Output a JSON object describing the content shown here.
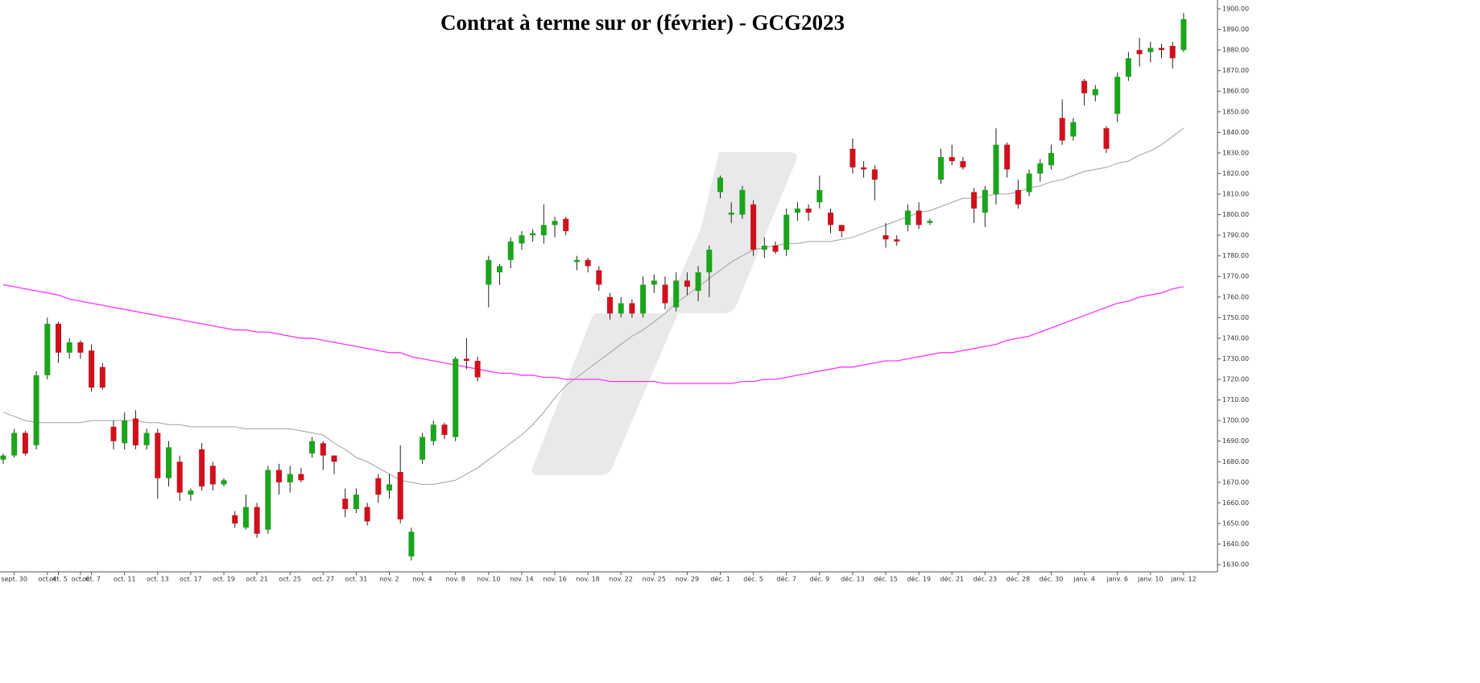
{
  "chart_data": {
    "type": "candlestick",
    "title": "Contrat à terme sur or (février) - GCG2023",
    "up_color": "#1aa51a",
    "down_color": "#d0101b",
    "categories": [
      null,
      "sept. 30",
      null,
      null,
      "oct. 4",
      "oct. 5",
      null,
      "oct. 6",
      "oct. 7",
      null,
      null,
      "oct. 11",
      null,
      null,
      "oct. 13",
      null,
      null,
      "oct. 17",
      null,
      null,
      "oct. 19",
      null,
      null,
      "oct. 21",
      null,
      null,
      "oct. 25",
      null,
      null,
      "oct. 27",
      null,
      null,
      "oct. 31",
      null,
      null,
      "nov. 2",
      null,
      null,
      "nov. 4",
      null,
      null,
      "nov. 8",
      null,
      null,
      "nov. 10",
      null,
      null,
      "nov. 14",
      null,
      null,
      "nov. 16",
      null,
      null,
      "nov. 18",
      null,
      null,
      "nov. 22",
      null,
      null,
      "nov. 25",
      null,
      null,
      "nov. 29",
      null,
      null,
      "déc. 1",
      null,
      null,
      "déc. 5",
      null,
      null,
      "déc. 7",
      null,
      null,
      "déc. 9",
      null,
      null,
      "déc. 13",
      null,
      null,
      "déc. 15",
      null,
      null,
      "déc. 19",
      null,
      null,
      "déc. 21",
      null,
      null,
      "déc. 23",
      null,
      null,
      "déc. 28",
      null,
      null,
      "déc. 30",
      null,
      null,
      "janv. 4",
      null,
      null,
      "janv. 6",
      null,
      null,
      "janv. 10",
      null,
      null,
      "janv. 12"
    ],
    "open": [
      1681,
      1683,
      1694,
      1688,
      1722,
      1747,
      1733,
      1738,
      1734,
      1726,
      1697,
      1689,
      1701,
      1688,
      1694,
      1672,
      1680,
      1664,
      1686,
      1678,
      1669,
      1654,
      1648,
      1658,
      1647,
      1676,
      1670,
      1674,
      1684,
      1689,
      1683,
      1662,
      1657,
      1658,
      1672,
      1666,
      1675,
      1634,
      1681,
      1690,
      1698,
      1692,
      1730,
      1729,
      1766,
      1772,
      1778,
      1786,
      1790,
      1790,
      1795,
      1798,
      1777,
      1778,
      1773,
      1760,
      1752,
      1757,
      1752,
      1766,
      1766,
      1755,
      1768,
      1763,
      1772,
      1811,
      1800,
      1800,
      1805,
      1783,
      1785,
      1783,
      1801,
      1803,
      1806,
      1801,
      1795,
      1832,
      1823,
      1822,
      1790,
      1788,
      1795,
      1802,
      1796,
      1817,
      1828,
      1826,
      1811,
      1801,
      1810,
      1834,
      1812,
      1811,
      1820,
      1824,
      1847,
      1838,
      1865,
      1858,
      1842,
      1849,
      1867,
      1880,
      1879,
      1881,
      1882,
      1880
    ],
    "high": [
      1684,
      1696,
      1695,
      1724,
      1750,
      1748,
      1740,
      1739,
      1737,
      1728,
      1700,
      1704,
      1705,
      1696,
      1696,
      1690,
      1683,
      1667,
      1689,
      1680,
      1672,
      1656,
      1664,
      1660,
      1678,
      1679,
      1678,
      1677,
      1692,
      1690,
      1683,
      1667,
      1667,
      1660,
      1674,
      1674,
      1688,
      1648,
      1694,
      1700,
      1699,
      1731,
      1740,
      1731,
      1780,
      1776,
      1789,
      1792,
      1793,
      1805,
      1799,
      1799,
      1780,
      1779,
      1775,
      1762,
      1760,
      1759,
      1770,
      1771,
      1770,
      1772,
      1772,
      1775,
      1785,
      1819,
      1806,
      1814,
      1807,
      1789,
      1787,
      1803,
      1806,
      1805,
      1819,
      1803,
      1795,
      1837,
      1826,
      1824,
      1796,
      1790,
      1805,
      1806,
      1798,
      1832,
      1834,
      1828,
      1813,
      1814,
      1842,
      1835,
      1817,
      1822,
      1827,
      1834,
      1856,
      1847,
      1866,
      1863,
      1843,
      1869,
      1879,
      1886,
      1884,
      1883,
      1884,
      1898
    ],
    "low": [
      1679,
      1682,
      1683,
      1686,
      1720,
      1728,
      1730,
      1730,
      1714,
      1715,
      1686,
      1686,
      1686,
      1686,
      1662,
      1668,
      1661,
      1661,
      1666,
      1666,
      1668,
      1648,
      1647,
      1643,
      1645,
      1664,
      1665,
      1670,
      1682,
      1676,
      1674,
      1653,
      1655,
      1649,
      1660,
      1662,
      1650,
      1632,
      1679,
      1688,
      1691,
      1690,
      1725,
      1719,
      1755,
      1766,
      1774,
      1783,
      1787,
      1786,
      1789,
      1790,
      1773,
      1772,
      1763,
      1749,
      1750,
      1750,
      1750,
      1762,
      1754,
      1753,
      1761,
      1758,
      1760,
      1808,
      1796,
      1798,
      1780,
      1779,
      1781,
      1780,
      1797,
      1797,
      1803,
      1791,
      1789,
      1820,
      1818,
      1807,
      1784,
      1785,
      1792,
      1793,
      1795,
      1815,
      1824,
      1822,
      1796,
      1794,
      1805,
      1818,
      1803,
      1809,
      1816,
      1822,
      1834,
      1836,
      1853,
      1855,
      1830,
      1845,
      1865,
      1872,
      1874,
      1876,
      1871,
      1879
    ],
    "close": [
      1683,
      1694,
      1684,
      1722,
      1747,
      1733,
      1738,
      1733,
      1716,
      1716,
      1690,
      1700,
      1688,
      1694,
      1672,
      1687,
      1665,
      1666,
      1668,
      1669,
      1671,
      1650,
      1658,
      1645,
      1676,
      1670,
      1674,
      1671,
      1690,
      1683,
      1680,
      1657,
      1664,
      1651,
      1664,
      1669,
      1652,
      1646,
      1692,
      1698,
      1693,
      1730,
      1729,
      1721,
      1778,
      1775,
      1787,
      1790,
      1791,
      1795,
      1797,
      1792,
      1778,
      1775,
      1766,
      1752,
      1757,
      1752,
      1766,
      1768,
      1757,
      1768,
      1765,
      1772,
      1783,
      1818,
      1801,
      1812,
      1783,
      1785,
      1782,
      1800,
      1803,
      1801,
      1812,
      1795,
      1792,
      1823,
      1822,
      1817,
      1788,
      1787,
      1802,
      1795,
      1797,
      1828,
      1826,
      1823,
      1803,
      1812,
      1834,
      1822,
      1805,
      1820,
      1825,
      1830,
      1836,
      1845,
      1859,
      1861,
      1832,
      1867,
      1876,
      1878,
      1881,
      1880,
      1876,
      1895
    ],
    "lines": [
      {
        "color": "#a0a0a0",
        "values": [
          1704,
          1702,
          1700,
          1699,
          1699,
          1699,
          1699,
          1699,
          1700,
          1700,
          1700,
          1700,
          1700,
          1699,
          1699,
          1698,
          1698,
          1697,
          1697,
          1697,
          1697,
          1697,
          1696,
          1696,
          1696,
          1696,
          1696,
          1695,
          1694,
          1693,
          1689,
          1686,
          1682,
          1680,
          1677,
          1674,
          1671,
          1670,
          1669,
          1669,
          1670,
          1671,
          1674,
          1677,
          1681,
          1685,
          1689,
          1693,
          1698,
          1704,
          1711,
          1717,
          1721,
          1725,
          1729,
          1733,
          1737,
          1741,
          1744,
          1748,
          1752,
          1757,
          1761,
          1765,
          1769,
          1773,
          1777,
          1780,
          1783,
          1784,
          1785,
          1786,
          1786,
          1787,
          1787,
          1787,
          1788,
          1789,
          1791,
          1793,
          1795,
          1797,
          1799,
          1801,
          1802,
          1804,
          1806,
          1808,
          1808,
          1809,
          1810,
          1810,
          1811,
          1813,
          1814,
          1816,
          1817,
          1819,
          1821,
          1822,
          1823,
          1825,
          1826,
          1829,
          1831,
          1834,
          1838,
          1842
        ]
      },
      {
        "color": "#ff33ff",
        "values": [
          1766,
          1765,
          1764,
          1763,
          1762,
          1761,
          1759,
          1758,
          1757,
          1756,
          1755,
          1754,
          1753,
          1752,
          1751,
          1750,
          1749,
          1748,
          1747,
          1746,
          1745,
          1744,
          1744,
          1743,
          1743,
          1742,
          1741,
          1740,
          1740,
          1739,
          1738,
          1737,
          1736,
          1735,
          1734,
          1733,
          1733,
          1731,
          1730,
          1729,
          1728,
          1727,
          1726,
          1725,
          1724,
          1723,
          1723,
          1722,
          1722,
          1721,
          1721,
          1720,
          1720,
          1720,
          1720,
          1719,
          1719,
          1719,
          1719,
          1719,
          1718,
          1718,
          1718,
          1718,
          1718,
          1718,
          1718,
          1719,
          1719,
          1720,
          1720,
          1721,
          1722,
          1723,
          1724,
          1725,
          1726,
          1726,
          1727,
          1728,
          1729,
          1729,
          1730,
          1731,
          1732,
          1733,
          1733,
          1734,
          1735,
          1736,
          1737,
          1739,
          1740,
          1741,
          1743,
          1745,
          1747,
          1749,
          1751,
          1753,
          1755,
          1757,
          1758,
          1760,
          1761,
          1762,
          1764,
          1765
        ]
      }
    ],
    "ylim": [
      1626.5,
      1904.3
    ],
    "yticks": [
      {
        "value": 1630,
        "label": "1630.00"
      },
      {
        "value": 1640,
        "label": "1640.00"
      },
      {
        "value": 1650,
        "label": "1650.00"
      },
      {
        "value": 1660,
        "label": "1660.00"
      },
      {
        "value": 1670,
        "label": "1670.00"
      },
      {
        "value": 1680,
        "label": "1680.00"
      },
      {
        "value": 1690,
        "label": "1690.00"
      },
      {
        "value": 1700,
        "label": "1700.00"
      },
      {
        "value": 1710,
        "label": "1710.00"
      },
      {
        "value": 1720,
        "label": "1720.00"
      },
      {
        "value": 1730,
        "label": "1730.00"
      },
      {
        "value": 1740,
        "label": "1740.00"
      },
      {
        "value": 1750,
        "label": "1750.00"
      },
      {
        "value": 1760,
        "label": "1760.00"
      },
      {
        "value": 1770,
        "label": "1770.00"
      },
      {
        "value": 1780,
        "label": "1780.00"
      },
      {
        "value": 1790,
        "label": "1790.00"
      },
      {
        "value": 1800,
        "label": "1800.00"
      },
      {
        "value": 1810,
        "label": "1810.00"
      },
      {
        "value": 1820,
        "label": "1820.00"
      },
      {
        "value": 1830,
        "label": "1830.00"
      },
      {
        "value": 1840,
        "label": "1840.00"
      },
      {
        "value": 1850,
        "label": "1850.00"
      },
      {
        "value": 1860,
        "label": "1860.00"
      },
      {
        "value": 1870,
        "label": "1870.00"
      },
      {
        "value": 1880,
        "label": "1880.00"
      },
      {
        "value": 1890,
        "label": "1890.00"
      },
      {
        "value": 1900,
        "label": "1900.00"
      }
    ]
  }
}
